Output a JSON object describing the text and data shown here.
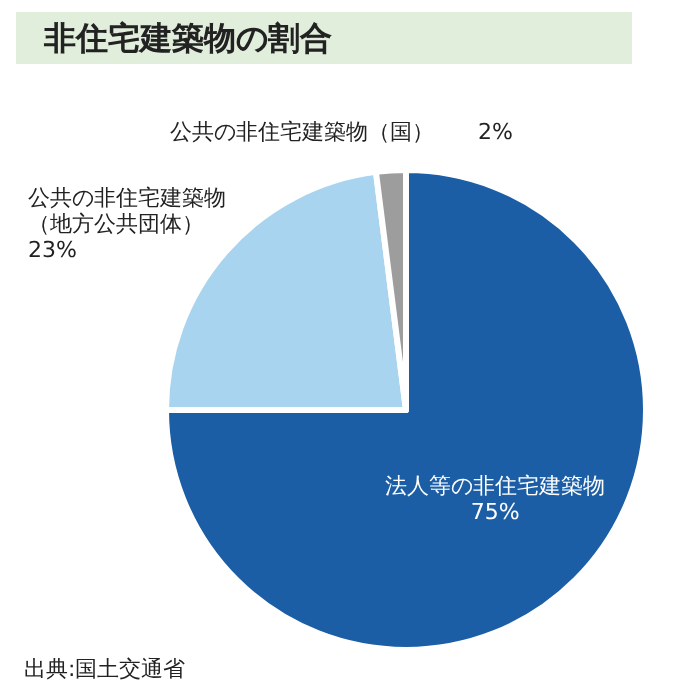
{
  "chart_data": {
    "type": "pie",
    "title": "非住宅建築物の割合",
    "categories": [
      "法人等の非住宅建築物",
      "公共の非住宅建築物（地方公共団体）",
      "公共の非住宅建築物（国）"
    ],
    "values": [
      75,
      23,
      2
    ],
    "value_labels": [
      "75%",
      "23%",
      "2%"
    ],
    "colors": [
      "#1b5ea6",
      "#a9d4ef",
      "#9d9d9d"
    ],
    "annotations": [
      "出典:国土交通省"
    ],
    "legend": false
  }
}
